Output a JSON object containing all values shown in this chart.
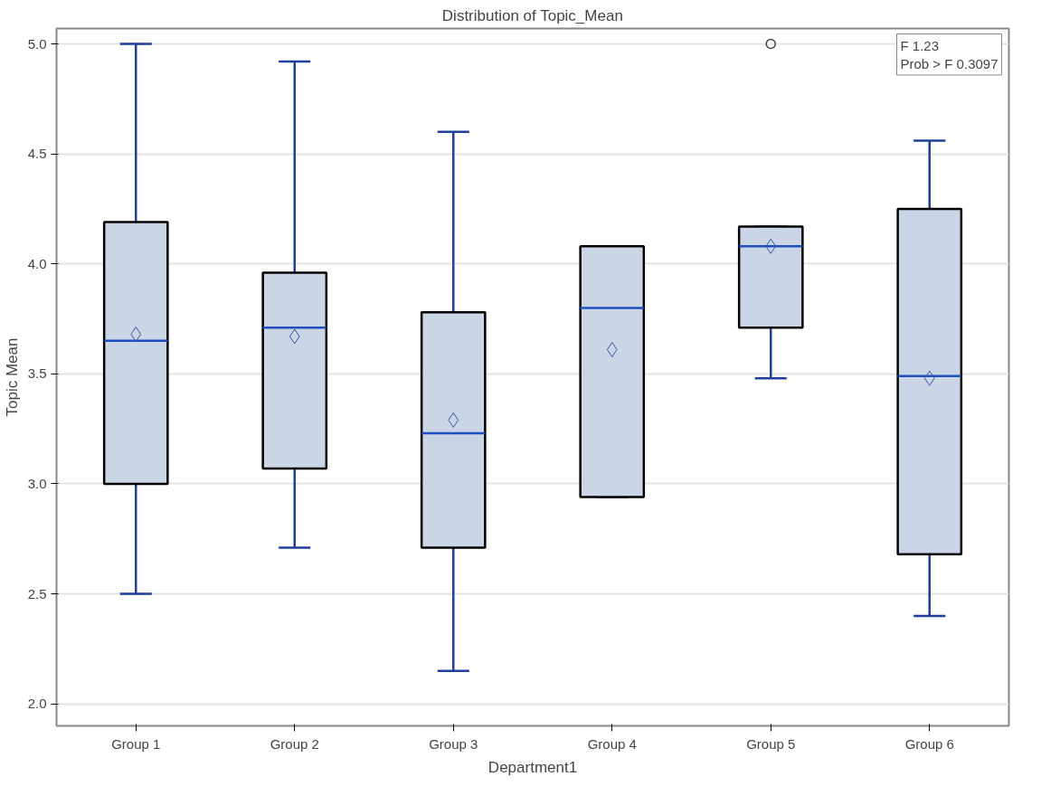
{
  "chart_data": {
    "type": "box",
    "title": "Distribution of Topic_Mean",
    "xlabel": "Department1",
    "ylabel": "Topic Mean",
    "categories": [
      "Group 1",
      "Group 2",
      "Group 3",
      "Group 4",
      "Group 5",
      "Group 6"
    ],
    "boxes": [
      {
        "low": 2.5,
        "q1": 3.0,
        "median": 3.65,
        "q3": 4.19,
        "high": 5.0,
        "mean": 3.68
      },
      {
        "low": 2.71,
        "q1": 3.07,
        "median": 3.71,
        "q3": 3.96,
        "high": 4.92,
        "mean": 3.67
      },
      {
        "low": 2.15,
        "q1": 2.71,
        "median": 3.23,
        "q3": 3.78,
        "high": 4.6,
        "mean": 3.29
      },
      {
        "low": 2.94,
        "q1": 2.94,
        "median": 3.8,
        "q3": 4.08,
        "high": 4.08,
        "mean": 3.61
      },
      {
        "low": 3.48,
        "q1": 3.71,
        "median": 4.08,
        "q3": 4.17,
        "high": 4.17,
        "mean": 4.08,
        "outliers": [
          5.0
        ]
      },
      {
        "low": 2.4,
        "q1": 2.68,
        "median": 3.49,
        "q3": 4.25,
        "high": 4.56,
        "mean": 3.48
      }
    ],
    "color": "#cad5e5",
    "ylim": [
      1.9,
      5.07
    ],
    "yticks": [
      {
        "value": 2,
        "label": "2.0"
      },
      {
        "value": 2.5,
        "label": "2.5"
      },
      {
        "value": 3,
        "label": "3.0"
      },
      {
        "value": 3.5,
        "label": "3.5"
      },
      {
        "value": 4,
        "label": "4.0"
      },
      {
        "value": 4.5,
        "label": "4.5"
      },
      {
        "value": 5,
        "label": "5.0"
      }
    ],
    "grid": "y",
    "annotations": [
      "F 1.23",
      "Prob > F 0.3097"
    ]
  }
}
